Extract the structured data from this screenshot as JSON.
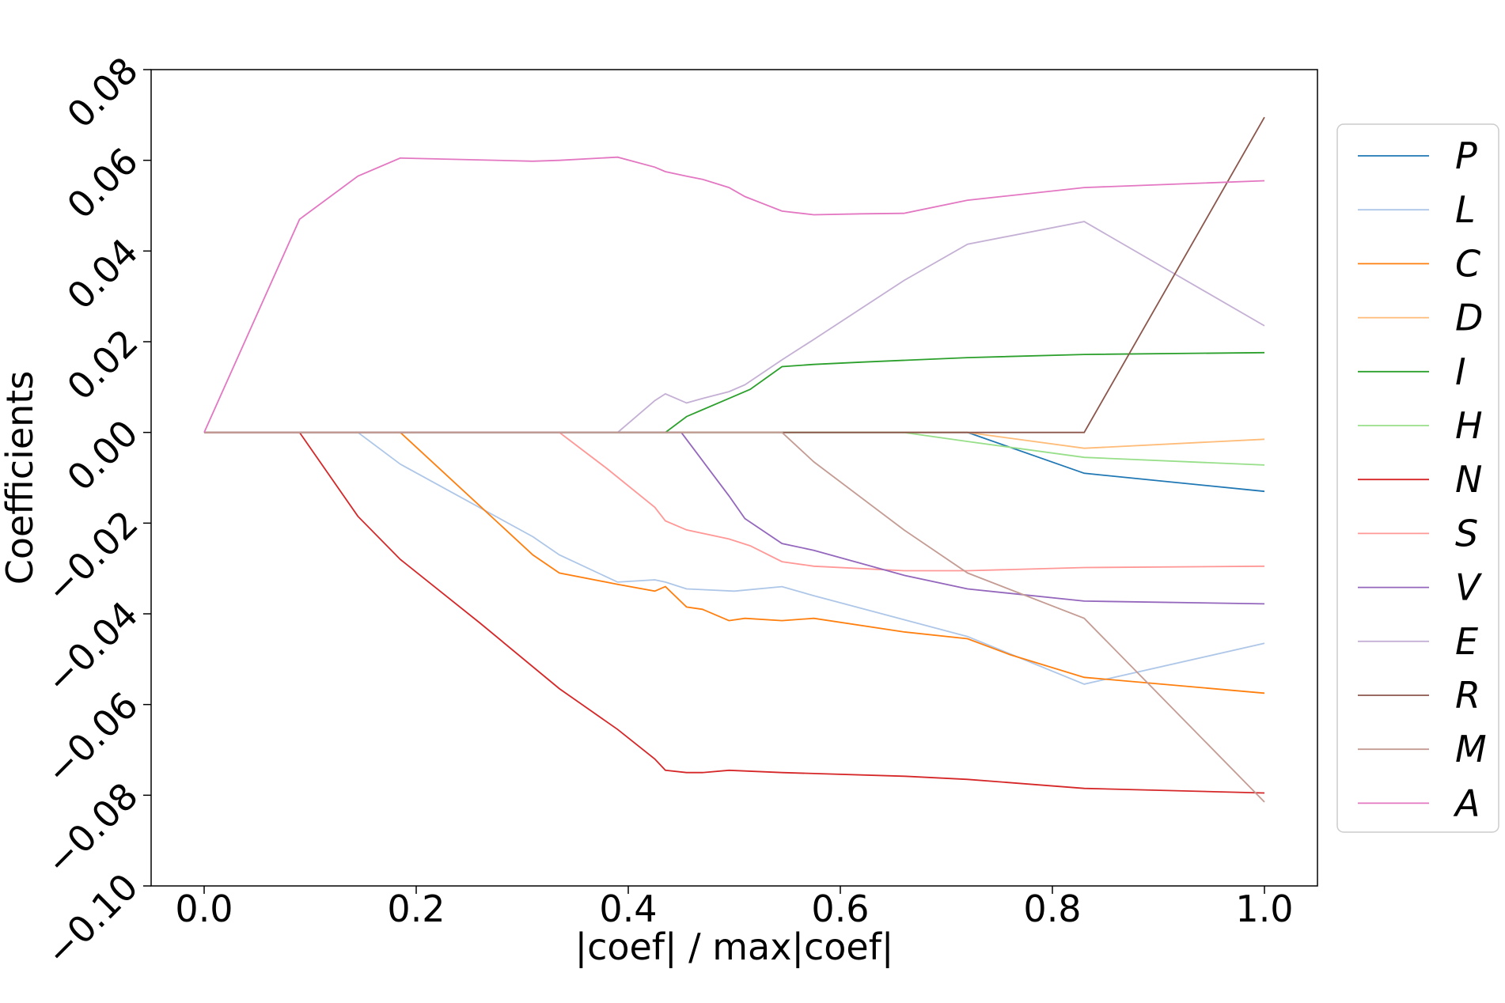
{
  "chart_data": {
    "type": "line",
    "title": "",
    "xlabel": "|coef| / max|coef|",
    "ylabel": "Coefficients",
    "xlim": [
      -0.05,
      1.05
    ],
    "ylim": [
      -0.1,
      0.08
    ],
    "xticks": [
      "0.0",
      "0.2",
      "0.4",
      "0.6",
      "0.8",
      "1.0"
    ],
    "xtick_values": [
      0.0,
      0.2,
      0.4,
      0.6,
      0.8,
      1.0
    ],
    "yticks": [
      "−0.10",
      "−0.08",
      "−0.06",
      "−0.04",
      "−0.02",
      "0.00",
      "0.02",
      "0.04",
      "0.06",
      "0.08"
    ],
    "ytick_values": [
      -0.1,
      -0.08,
      -0.06,
      -0.04,
      -0.02,
      0.0,
      0.02,
      0.04,
      0.06,
      0.08
    ],
    "grid": false,
    "legend_position": "right",
    "series": [
      {
        "name": "P",
        "color": "#1f77b4",
        "points": [
          [
            0,
            0
          ],
          [
            0.72,
            0
          ],
          [
            0.83,
            -0.009
          ],
          [
            1.0,
            -0.013
          ]
        ]
      },
      {
        "name": "L",
        "color": "#aec7e8",
        "points": [
          [
            0,
            0
          ],
          [
            0.145,
            0
          ],
          [
            0.185,
            -0.007
          ],
          [
            0.31,
            -0.023
          ],
          [
            0.335,
            -0.027
          ],
          [
            0.39,
            -0.033
          ],
          [
            0.425,
            -0.0325
          ],
          [
            0.435,
            -0.033
          ],
          [
            0.455,
            -0.0345
          ],
          [
            0.5,
            -0.035
          ],
          [
            0.545,
            -0.034
          ],
          [
            0.575,
            -0.036
          ],
          [
            0.72,
            -0.045
          ],
          [
            0.83,
            -0.0555
          ],
          [
            1.0,
            -0.0465
          ]
        ]
      },
      {
        "name": "C",
        "color": "#ff7f0e",
        "points": [
          [
            0,
            0
          ],
          [
            0.185,
            0
          ],
          [
            0.31,
            -0.027
          ],
          [
            0.335,
            -0.031
          ],
          [
            0.39,
            -0.0335
          ],
          [
            0.425,
            -0.035
          ],
          [
            0.435,
            -0.034
          ],
          [
            0.455,
            -0.0385
          ],
          [
            0.47,
            -0.039
          ],
          [
            0.495,
            -0.0415
          ],
          [
            0.51,
            -0.041
          ],
          [
            0.545,
            -0.0415
          ],
          [
            0.575,
            -0.041
          ],
          [
            0.66,
            -0.044
          ],
          [
            0.72,
            -0.0455
          ],
          [
            0.76,
            -0.049
          ],
          [
            0.83,
            -0.054
          ],
          [
            1.0,
            -0.0575
          ]
        ]
      },
      {
        "name": "D",
        "color": "#ffbb78",
        "points": [
          [
            0,
            0
          ],
          [
            0.72,
            0
          ],
          [
            0.83,
            -0.0035
          ],
          [
            1.0,
            -0.0015
          ]
        ]
      },
      {
        "name": "I",
        "color": "#2ca02c",
        "points": [
          [
            0,
            0
          ],
          [
            0.435,
            0
          ],
          [
            0.455,
            0.0035
          ],
          [
            0.47,
            0.005
          ],
          [
            0.495,
            0.0075
          ],
          [
            0.515,
            0.0095
          ],
          [
            0.545,
            0.0145
          ],
          [
            0.575,
            0.015
          ],
          [
            0.62,
            0.0155
          ],
          [
            0.72,
            0.0165
          ],
          [
            0.83,
            0.0172
          ],
          [
            1.0,
            0.0176
          ]
        ]
      },
      {
        "name": "H",
        "color": "#98df8a",
        "points": [
          [
            0,
            0
          ],
          [
            0.66,
            0
          ],
          [
            0.72,
            -0.002
          ],
          [
            0.83,
            -0.0055
          ],
          [
            1.0,
            -0.0072
          ]
        ]
      },
      {
        "name": "N",
        "color": "#d62728",
        "points": [
          [
            0,
            0
          ],
          [
            0.09,
            0
          ],
          [
            0.145,
            -0.0185
          ],
          [
            0.185,
            -0.028
          ],
          [
            0.26,
            -0.042
          ],
          [
            0.335,
            -0.0565
          ],
          [
            0.39,
            -0.0655
          ],
          [
            0.425,
            -0.072
          ],
          [
            0.435,
            -0.0745
          ],
          [
            0.455,
            -0.075
          ],
          [
            0.47,
            -0.075
          ],
          [
            0.495,
            -0.0745
          ],
          [
            0.545,
            -0.075
          ],
          [
            0.66,
            -0.0758
          ],
          [
            0.72,
            -0.0765
          ],
          [
            0.83,
            -0.0785
          ],
          [
            1.0,
            -0.0795
          ]
        ]
      },
      {
        "name": "S",
        "color": "#ff9896",
        "points": [
          [
            0,
            0
          ],
          [
            0.335,
            0
          ],
          [
            0.38,
            -0.008
          ],
          [
            0.425,
            -0.0165
          ],
          [
            0.435,
            -0.0195
          ],
          [
            0.455,
            -0.0215
          ],
          [
            0.495,
            -0.0235
          ],
          [
            0.515,
            -0.025
          ],
          [
            0.545,
            -0.0285
          ],
          [
            0.575,
            -0.0295
          ],
          [
            0.66,
            -0.0305
          ],
          [
            0.72,
            -0.0305
          ],
          [
            0.83,
            -0.0298
          ],
          [
            1.0,
            -0.0295
          ]
        ]
      },
      {
        "name": "V",
        "color": "#9467bd",
        "points": [
          [
            0,
            0
          ],
          [
            0.45,
            0
          ],
          [
            0.495,
            -0.014
          ],
          [
            0.51,
            -0.019
          ],
          [
            0.545,
            -0.0245
          ],
          [
            0.575,
            -0.026
          ],
          [
            0.66,
            -0.0315
          ],
          [
            0.72,
            -0.0345
          ],
          [
            0.83,
            -0.0372
          ],
          [
            1.0,
            -0.0378
          ]
        ]
      },
      {
        "name": "E",
        "color": "#c5b0d5",
        "points": [
          [
            0,
            0
          ],
          [
            0.39,
            0
          ],
          [
            0.425,
            0.007
          ],
          [
            0.435,
            0.0085
          ],
          [
            0.455,
            0.0065
          ],
          [
            0.47,
            0.0075
          ],
          [
            0.495,
            0.009
          ],
          [
            0.51,
            0.0105
          ],
          [
            0.545,
            0.016
          ],
          [
            0.575,
            0.0205
          ],
          [
            0.66,
            0.0335
          ],
          [
            0.72,
            0.0415
          ],
          [
            0.83,
            0.0465
          ],
          [
            1.0,
            0.0235
          ]
        ]
      },
      {
        "name": "R",
        "color": "#8c564b",
        "points": [
          [
            0,
            0
          ],
          [
            0.83,
            0
          ],
          [
            1.0,
            0.0695
          ]
        ]
      },
      {
        "name": "M",
        "color": "#c49c94",
        "points": [
          [
            0,
            0
          ],
          [
            0.545,
            0
          ],
          [
            0.575,
            -0.0065
          ],
          [
            0.66,
            -0.0215
          ],
          [
            0.72,
            -0.031
          ],
          [
            0.83,
            -0.041
          ],
          [
            1.0,
            -0.0815
          ]
        ]
      },
      {
        "name": "A",
        "color": "#e377c2",
        "points": [
          [
            0,
            0
          ],
          [
            0.09,
            0.047
          ],
          [
            0.145,
            0.0565
          ],
          [
            0.185,
            0.0605
          ],
          [
            0.31,
            0.0598
          ],
          [
            0.335,
            0.06
          ],
          [
            0.39,
            0.0607
          ],
          [
            0.425,
            0.0585
          ],
          [
            0.435,
            0.0575
          ],
          [
            0.455,
            0.0565
          ],
          [
            0.47,
            0.0558
          ],
          [
            0.495,
            0.054
          ],
          [
            0.51,
            0.052
          ],
          [
            0.545,
            0.0488
          ],
          [
            0.575,
            0.048
          ],
          [
            0.62,
            0.0482
          ],
          [
            0.66,
            0.0483
          ],
          [
            0.72,
            0.0512
          ],
          [
            0.83,
            0.054
          ],
          [
            1.0,
            0.0555
          ]
        ]
      }
    ]
  }
}
